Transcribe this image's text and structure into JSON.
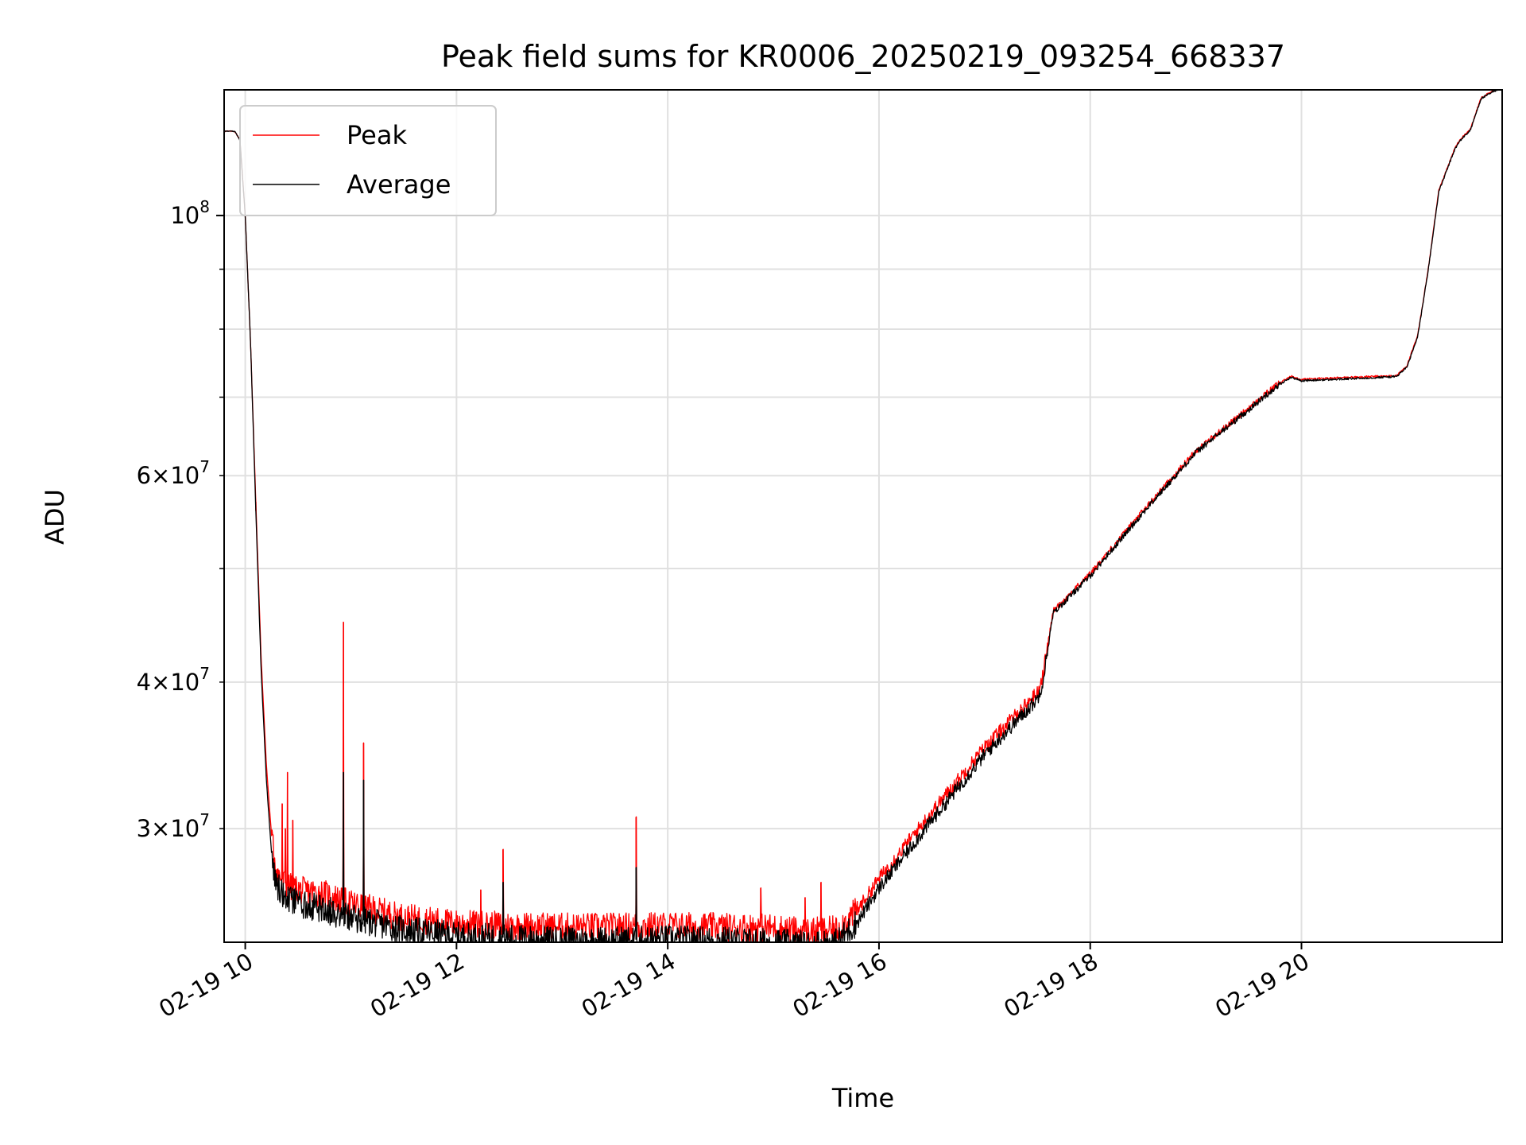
{
  "chart_data": {
    "type": "line",
    "title": "Peak field sums for KR0006_20250219_093254_668337",
    "xlabel": "Time",
    "ylabel": "ADU",
    "x_unit": "hour of day, 2025-02-19",
    "xlim": [
      9.8,
      21.9
    ],
    "ylim": [
      24000000,
      128000000
    ],
    "yscale": "log",
    "grid": true,
    "legend_position": "top-left",
    "x_ticks": [
      {
        "value": 10,
        "label": "02-19 10"
      },
      {
        "value": 12,
        "label": "02-19 12"
      },
      {
        "value": 14,
        "label": "02-19 14"
      },
      {
        "value": 16,
        "label": "02-19 16"
      },
      {
        "value": 18,
        "label": "02-19 18"
      },
      {
        "value": 20,
        "label": "02-19 20"
      }
    ],
    "y_major_ticks": [
      {
        "value": 100000000,
        "base": "10",
        "exp": "8"
      }
    ],
    "y_minor_ticks": [
      {
        "value": 30000000,
        "mant": "3",
        "base": "10",
        "exp": "7"
      },
      {
        "value": 40000000,
        "mant": "4",
        "base": "10",
        "exp": "7"
      },
      {
        "value": 60000000,
        "mant": "6",
        "base": "10",
        "exp": "7"
      }
    ],
    "y_unlabeled_minor": [
      50000000,
      70000000,
      80000000,
      90000000
    ],
    "series": [
      {
        "name": "Peak",
        "color": "#ff0000",
        "x": [
          9.8,
          9.9,
          9.95,
          10.0,
          10.05,
          10.1,
          10.15,
          10.2,
          10.25,
          10.3,
          10.4,
          10.5,
          10.75,
          11.0,
          11.5,
          12.0,
          12.5,
          13.0,
          13.5,
          14.0,
          14.5,
          15.0,
          15.3,
          15.6,
          15.8,
          16.0,
          16.5,
          17.0,
          17.5,
          17.55,
          17.65,
          18.0,
          18.5,
          19.0,
          19.5,
          19.75,
          19.9,
          20.0,
          20.5,
          20.9,
          21.0,
          21.1,
          21.2,
          21.3,
          21.45,
          21.5,
          21.6,
          21.7,
          21.9
        ],
        "y": [
          118000000,
          118000000,
          116000000,
          100000000,
          78000000,
          57000000,
          42000000,
          34000000,
          29500000,
          27500000,
          26800000,
          26600000,
          26400000,
          25900000,
          25200000,
          24900000,
          24800000,
          24750000,
          24750000,
          24800000,
          24750000,
          24700000,
          24500000,
          24600000,
          25600000,
          27200000,
          31000000,
          35200000,
          39200000,
          40500000,
          46000000,
          49500000,
          56000000,
          63000000,
          68500000,
          71500000,
          73000000,
          72500000,
          72800000,
          73000000,
          74500000,
          79000000,
          90000000,
          105000000,
          114000000,
          116000000,
          118500000,
          126000000,
          129000000
        ],
        "spikes": [
          {
            "x": 10.1,
            "y": 56000000
          },
          {
            "x": 10.35,
            "y": 31500000
          },
          {
            "x": 10.38,
            "y": 30000000
          },
          {
            "x": 10.4,
            "y": 33500000
          },
          {
            "x": 10.45,
            "y": 30500000
          },
          {
            "x": 10.93,
            "y": 45000000
          },
          {
            "x": 11.12,
            "y": 35500000
          },
          {
            "x": 12.23,
            "y": 26600000
          },
          {
            "x": 12.44,
            "y": 28800000
          },
          {
            "x": 13.7,
            "y": 30700000
          },
          {
            "x": 14.88,
            "y": 26700000
          },
          {
            "x": 15.3,
            "y": 26200000
          },
          {
            "x": 15.45,
            "y": 27000000
          }
        ]
      },
      {
        "name": "Average",
        "color": "#000000",
        "x": [
          9.8,
          9.9,
          9.95,
          10.0,
          10.05,
          10.1,
          10.15,
          10.2,
          10.25,
          10.3,
          10.4,
          10.5,
          10.75,
          11.0,
          11.5,
          12.0,
          12.5,
          13.0,
          13.5,
          14.0,
          14.5,
          15.0,
          15.3,
          15.6,
          15.8,
          16.0,
          16.5,
          17.0,
          17.5,
          17.55,
          17.65,
          18.0,
          18.5,
          19.0,
          19.5,
          19.75,
          19.9,
          20.0,
          20.5,
          20.9,
          21.0,
          21.1,
          21.2,
          21.3,
          21.45,
          21.5,
          21.6,
          21.7,
          21.9
        ],
        "y": [
          118000000,
          118000000,
          116000000,
          100000000,
          78000000,
          56000000,
          41000000,
          33000000,
          28500000,
          26800000,
          26100000,
          25900000,
          25600000,
          25200000,
          24600000,
          24300000,
          24200000,
          24100000,
          24100000,
          24150000,
          24100000,
          24000000,
          23900000,
          24000000,
          25000000,
          26700000,
          30500000,
          34700000,
          38700000,
          40000000,
          45800000,
          49300000,
          55800000,
          62800000,
          68300000,
          71300000,
          72800000,
          72300000,
          72600000,
          72900000,
          74300000,
          78800000,
          89800000,
          104800000,
          113800000,
          115800000,
          118300000,
          125800000,
          128800000
        ],
        "spikes": [
          {
            "x": 10.93,
            "y": 33500000
          },
          {
            "x": 11.12,
            "y": 33000000
          },
          {
            "x": 12.44,
            "y": 27000000
          },
          {
            "x": 13.7,
            "y": 27800000
          }
        ]
      }
    ]
  }
}
